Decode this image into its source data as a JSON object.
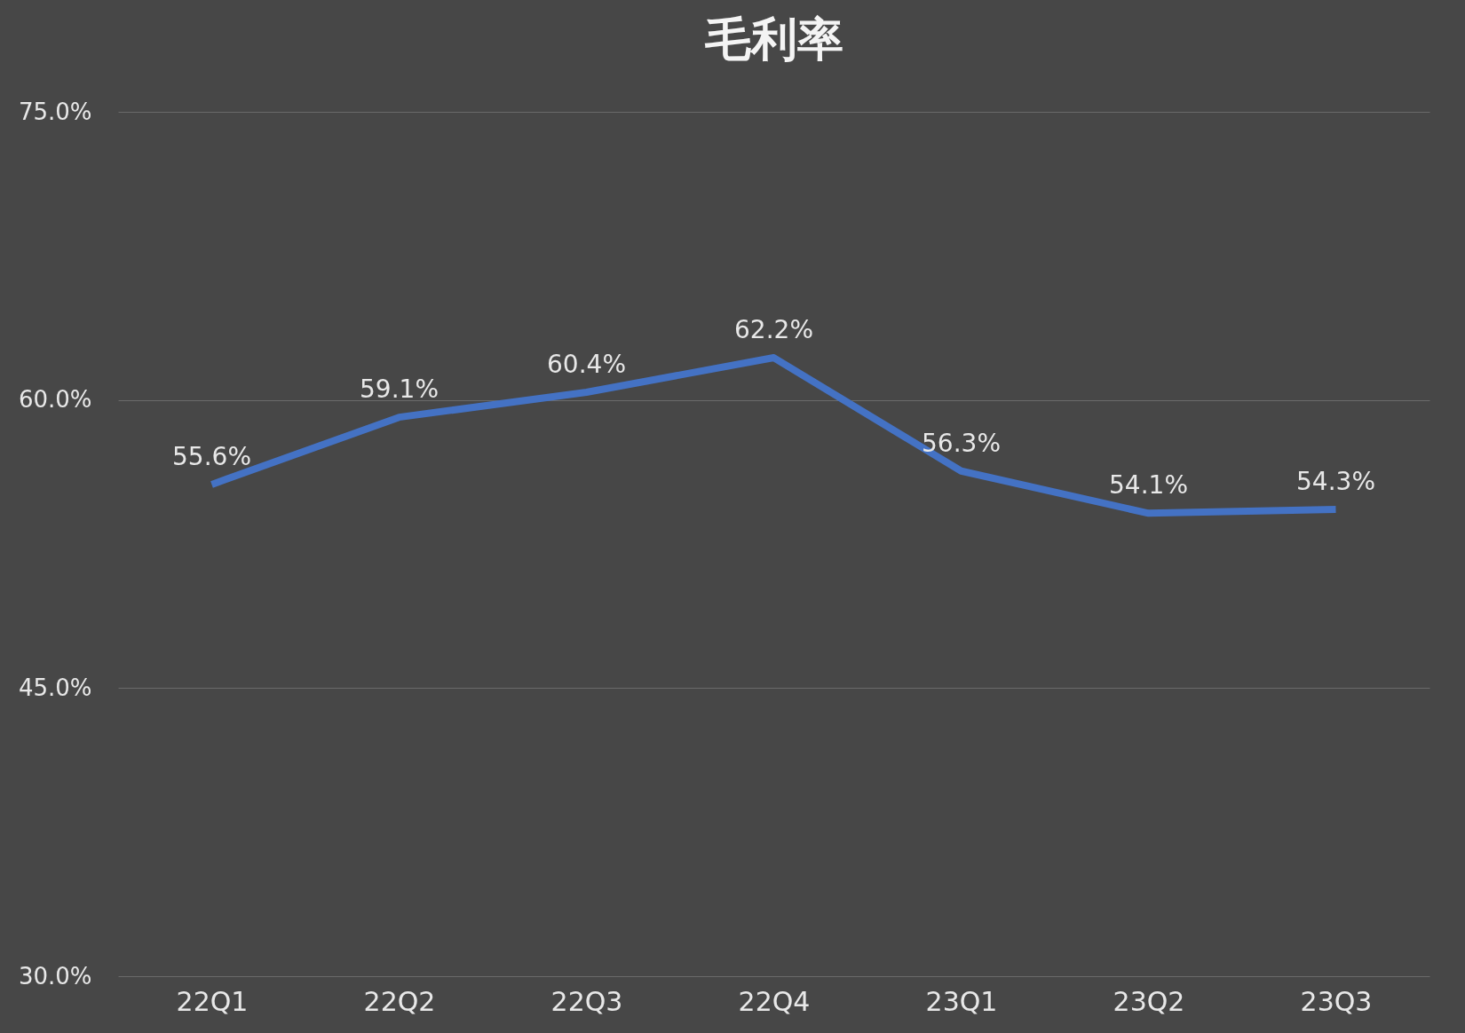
{
  "chart_data": {
    "type": "line",
    "title": "毛利率",
    "categories": [
      "22Q1",
      "22Q2",
      "22Q3",
      "22Q4",
      "23Q1",
      "23Q2",
      "23Q3"
    ],
    "series": [
      {
        "color": "#4472c4",
        "values": [
          55.6,
          59.1,
          60.4,
          62.2,
          56.3,
          54.1,
          54.3
        ],
        "value_labels": [
          "55.6%",
          "59.1%",
          "60.4%",
          "62.2%",
          "56.3%",
          "54.1%",
          "54.3%"
        ]
      }
    ],
    "ylim": [
      30,
      75
    ],
    "yticks": [
      {
        "value": 30,
        "label": "30.0%"
      },
      {
        "value": 45,
        "label": "45.0%"
      },
      {
        "value": 60,
        "label": "60.0%"
      },
      {
        "value": 75,
        "label": "75.0%"
      }
    ],
    "grid": "y",
    "marker": "none",
    "line_style": "solid"
  }
}
